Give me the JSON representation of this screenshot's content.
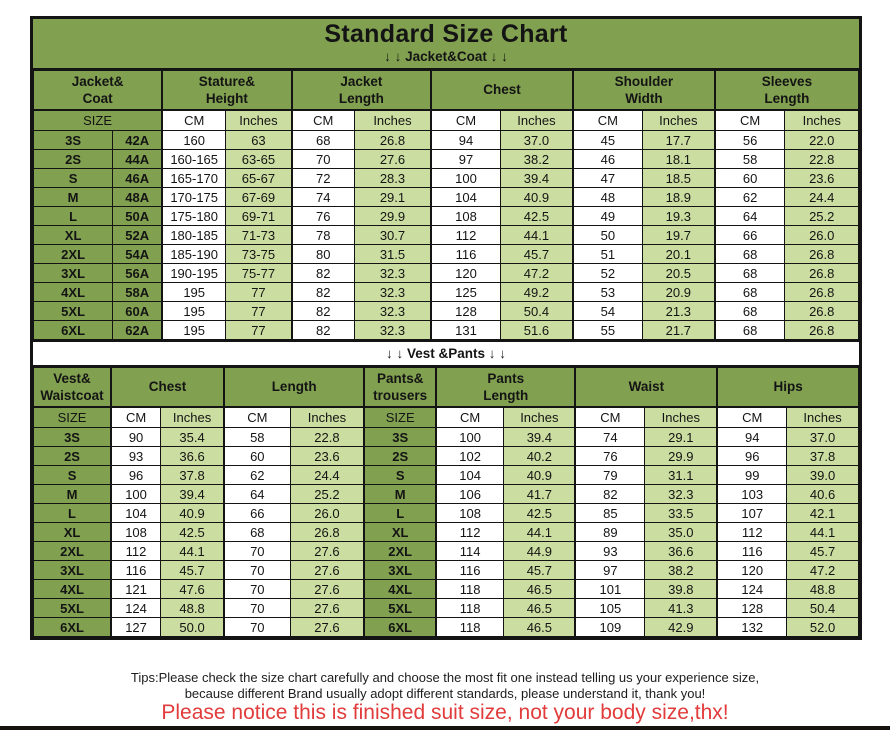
{
  "title": "Standard Size Chart",
  "labels": {
    "size": "SIZE",
    "cm": "CM",
    "inches": "Inches"
  },
  "jacket": {
    "banner": "↓ ↓  Jacket&Coat ↓ ↓",
    "groups": {
      "size": "Jacket&\nCoat",
      "stature": "Stature&\nHeight",
      "jacket_length": "Jacket\nLength",
      "chest": "Chest",
      "shoulder": "Shoulder\nWidth",
      "sleeves": "Sleeves\nLength"
    },
    "rows": [
      [
        "3S",
        "42A",
        "160",
        "63",
        "68",
        "26.8",
        "94",
        "37.0",
        "45",
        "17.7",
        "56",
        "22.0"
      ],
      [
        "2S",
        "44A",
        "160-165",
        "63-65",
        "70",
        "27.6",
        "97",
        "38.2",
        "46",
        "18.1",
        "58",
        "22.8"
      ],
      [
        "S",
        "46A",
        "165-170",
        "65-67",
        "72",
        "28.3",
        "100",
        "39.4",
        "47",
        "18.5",
        "60",
        "23.6"
      ],
      [
        "M",
        "48A",
        "170-175",
        "67-69",
        "74",
        "29.1",
        "104",
        "40.9",
        "48",
        "18.9",
        "62",
        "24.4"
      ],
      [
        "L",
        "50A",
        "175-180",
        "69-71",
        "76",
        "29.9",
        "108",
        "42.5",
        "49",
        "19.3",
        "64",
        "25.2"
      ],
      [
        "XL",
        "52A",
        "180-185",
        "71-73",
        "78",
        "30.7",
        "112",
        "44.1",
        "50",
        "19.7",
        "66",
        "26.0"
      ],
      [
        "2XL",
        "54A",
        "185-190",
        "73-75",
        "80",
        "31.5",
        "116",
        "45.7",
        "51",
        "20.1",
        "68",
        "26.8"
      ],
      [
        "3XL",
        "56A",
        "190-195",
        "75-77",
        "82",
        "32.3",
        "120",
        "47.2",
        "52",
        "20.5",
        "68",
        "26.8"
      ],
      [
        "4XL",
        "58A",
        "195",
        "77",
        "82",
        "32.3",
        "125",
        "49.2",
        "53",
        "20.9",
        "68",
        "26.8"
      ],
      [
        "5XL",
        "60A",
        "195",
        "77",
        "82",
        "32.3",
        "128",
        "50.4",
        "54",
        "21.3",
        "68",
        "26.8"
      ],
      [
        "6XL",
        "62A",
        "195",
        "77",
        "82",
        "32.3",
        "131",
        "51.6",
        "55",
        "21.7",
        "68",
        "26.8"
      ]
    ]
  },
  "vest": {
    "banner": "↓ ↓  Vest &Pants ↓ ↓",
    "groups": {
      "size": "Vest&\nWaistcoat",
      "chest": "Chest",
      "length": "Length",
      "pants_size": "Pants&\ntrousers",
      "pants_length": "Pants\nLength",
      "waist": "Waist",
      "hips": "Hips"
    },
    "rows": [
      [
        "3S",
        "90",
        "35.4",
        "58",
        "22.8",
        "3S",
        "100",
        "39.4",
        "74",
        "29.1",
        "94",
        "37.0"
      ],
      [
        "2S",
        "93",
        "36.6",
        "60",
        "23.6",
        "2S",
        "102",
        "40.2",
        "76",
        "29.9",
        "96",
        "37.8"
      ],
      [
        "S",
        "96",
        "37.8",
        "62",
        "24.4",
        "S",
        "104",
        "40.9",
        "79",
        "31.1",
        "99",
        "39.0"
      ],
      [
        "M",
        "100",
        "39.4",
        "64",
        "25.2",
        "M",
        "106",
        "41.7",
        "82",
        "32.3",
        "103",
        "40.6"
      ],
      [
        "L",
        "104",
        "40.9",
        "66",
        "26.0",
        "L",
        "108",
        "42.5",
        "85",
        "33.5",
        "107",
        "42.1"
      ],
      [
        "XL",
        "108",
        "42.5",
        "68",
        "26.8",
        "XL",
        "112",
        "44.1",
        "89",
        "35.0",
        "112",
        "44.1"
      ],
      [
        "2XL",
        "112",
        "44.1",
        "70",
        "27.6",
        "2XL",
        "114",
        "44.9",
        "93",
        "36.6",
        "116",
        "45.7"
      ],
      [
        "3XL",
        "116",
        "45.7",
        "70",
        "27.6",
        "3XL",
        "116",
        "45.7",
        "97",
        "38.2",
        "120",
        "47.2"
      ],
      [
        "4XL",
        "121",
        "47.6",
        "70",
        "27.6",
        "4XL",
        "118",
        "46.5",
        "101",
        "39.8",
        "124",
        "48.8"
      ],
      [
        "5XL",
        "124",
        "48.8",
        "70",
        "27.6",
        "5XL",
        "118",
        "46.5",
        "105",
        "41.3",
        "128",
        "50.4"
      ],
      [
        "6XL",
        "127",
        "50.0",
        "70",
        "27.6",
        "6XL",
        "118",
        "46.5",
        "109",
        "42.9",
        "132",
        "52.0"
      ]
    ]
  },
  "footer": {
    "tips_line1": "Tips:Please check the size chart carefully and choose the most fit one instead telling us your experience size,",
    "tips_line2": "because different Brand usually adopt different standards, please understand it, thank you!",
    "notice": "Please notice this is finished suit size, not your body size,thx!"
  },
  "colors": {
    "header_green": "#81a050",
    "light_green": "#cbdda0",
    "notice_red": "#e23b3b"
  }
}
